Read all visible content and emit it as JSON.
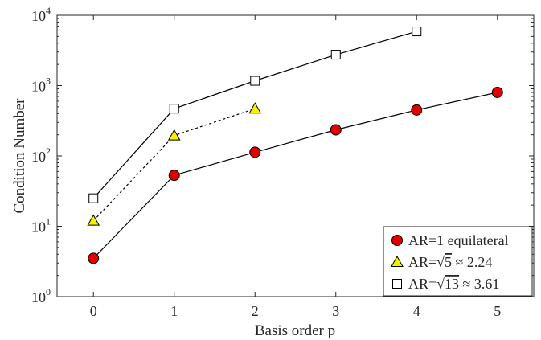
{
  "chart_data": {
    "type": "line",
    "xlabel": "Basis order p",
    "ylabel": "Condition Number",
    "xlim": [
      -0.45,
      5.45
    ],
    "ylim": [
      1,
      10000
    ],
    "yscale": "log",
    "x_ticks": [
      0,
      1,
      2,
      3,
      4,
      5
    ],
    "y_ticks": [
      {
        "value": 1,
        "base": "10",
        "exp": "0"
      },
      {
        "value": 10,
        "base": "10",
        "exp": "1"
      },
      {
        "value": 100,
        "base": "10",
        "exp": "2"
      },
      {
        "value": 1000,
        "base": "10",
        "exp": "3"
      },
      {
        "value": 10000,
        "base": "10",
        "exp": "4"
      }
    ],
    "grid": false,
    "legend_position": "bottom-right",
    "series": [
      {
        "name": "AR=1 equilateral",
        "legend": {
          "prefix": "AR=1 equilateral",
          "radicand": "",
          "suffix": ""
        },
        "marker": "circle",
        "color": "#e00000",
        "line": "solid",
        "x": [
          0,
          1,
          2,
          3,
          4,
          5
        ],
        "y": [
          3.5,
          53,
          113,
          235,
          450,
          800
        ]
      },
      {
        "name": "AR=√5 ≈ 2.24",
        "legend": {
          "prefix": "AR=",
          "radicand": "5",
          "suffix": " ≈ 2.24"
        },
        "marker": "triangle",
        "color": "#f2f200",
        "line": "dotted",
        "x": [
          0,
          1,
          2
        ],
        "y": [
          12,
          195,
          470
        ]
      },
      {
        "name": "AR=√13 ≈ 3.61",
        "legend": {
          "prefix": "AR=",
          "radicand": "13",
          "suffix": " ≈ 3.61"
        },
        "marker": "square",
        "color": "#ffffff",
        "line": "solid",
        "x": [
          0,
          1,
          2,
          3,
          4
        ],
        "y": [
          25,
          470,
          1170,
          2750,
          5900
        ]
      }
    ]
  }
}
